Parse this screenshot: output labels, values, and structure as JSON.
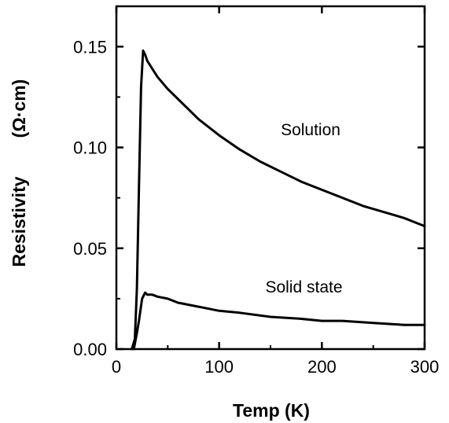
{
  "chart_data": {
    "type": "line",
    "title": "",
    "xlabel": "Temp (K)",
    "ylabel": "Resistivity",
    "ylabel_unit": "(Ω·cm)",
    "xlim": [
      0,
      300
    ],
    "ylim": [
      0,
      0.17
    ],
    "xticks": [
      0,
      100,
      200,
      300
    ],
    "xtick_labels": [
      "0",
      "100",
      "200",
      "300"
    ],
    "yticks": [
      0,
      0.05,
      0.1,
      0.15
    ],
    "ytick_labels": [
      "0.00",
      "0.05",
      "0.10",
      "0.15"
    ],
    "grid": false,
    "legend": "none",
    "line_color": "#000000",
    "series": [
      {
        "label": "Solution",
        "x": [
          15,
          18,
          20,
          22,
          24,
          26,
          28,
          30,
          35,
          40,
          50,
          60,
          70,
          80,
          100,
          120,
          140,
          160,
          180,
          200,
          220,
          240,
          260,
          280,
          300
        ],
        "y": [
          0.0,
          0.005,
          0.03,
          0.08,
          0.13,
          0.148,
          0.146,
          0.143,
          0.139,
          0.135,
          0.129,
          0.124,
          0.119,
          0.114,
          0.106,
          0.099,
          0.093,
          0.088,
          0.083,
          0.079,
          0.075,
          0.071,
          0.068,
          0.065,
          0.061
        ]
      },
      {
        "label": "Solid state",
        "x": [
          17,
          20,
          22,
          25,
          28,
          30,
          35,
          40,
          50,
          60,
          80,
          100,
          120,
          150,
          180,
          200,
          220,
          250,
          280,
          300
        ],
        "y": [
          0.0,
          0.008,
          0.014,
          0.025,
          0.028,
          0.027,
          0.027,
          0.026,
          0.025,
          0.023,
          0.021,
          0.019,
          0.018,
          0.016,
          0.015,
          0.014,
          0.014,
          0.013,
          0.012,
          0.012
        ]
      }
    ],
    "annotations": [
      {
        "text": "Solution",
        "x": 160,
        "y": 0.106
      },
      {
        "text": "Solid state",
        "x": 145,
        "y": 0.028
      }
    ]
  }
}
